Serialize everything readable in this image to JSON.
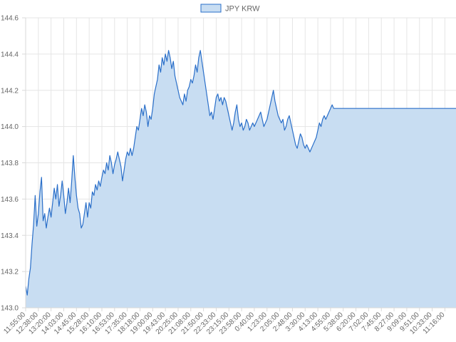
{
  "chart_data": {
    "type": "area",
    "title": "",
    "xlabel": "",
    "ylabel": "",
    "legend": {
      "position": "top-center",
      "entries": [
        "JPY KRW"
      ]
    },
    "series": [
      {
        "name": "JPY KRW",
        "color": "#2a6fc9",
        "fill": "#c8ddf2",
        "points": [
          [
            "11:55:00",
            143.12
          ],
          [
            "12:01:00",
            143.07
          ],
          [
            "12:06:00",
            143.16
          ],
          [
            "12:11:00",
            143.22
          ],
          [
            "12:17:00",
            143.35
          ],
          [
            "12:23:00",
            143.46
          ],
          [
            "12:28:00",
            143.62
          ],
          [
            "12:33:00",
            143.45
          ],
          [
            "12:38:00",
            143.52
          ],
          [
            "12:43:00",
            143.64
          ],
          [
            "12:48:00",
            143.72
          ],
          [
            "12:52:00",
            143.48
          ],
          [
            "12:58:00",
            143.52
          ],
          [
            "13:04:00",
            143.44
          ],
          [
            "13:09:00",
            143.5
          ],
          [
            "13:14:00",
            143.55
          ],
          [
            "13:20:00",
            143.5
          ],
          [
            "13:25:00",
            143.58
          ],
          [
            "13:30:00",
            143.66
          ],
          [
            "13:35:00",
            143.6
          ],
          [
            "13:41:00",
            143.68
          ],
          [
            "13:46:00",
            143.56
          ],
          [
            "13:51:00",
            143.62
          ],
          [
            "13:57:00",
            143.7
          ],
          [
            "14:03:00",
            143.62
          ],
          [
            "14:08:00",
            143.52
          ],
          [
            "14:13:00",
            143.58
          ],
          [
            "14:18:00",
            143.66
          ],
          [
            "14:23:00",
            143.58
          ],
          [
            "14:28:00",
            143.7
          ],
          [
            "14:33:00",
            143.84
          ],
          [
            "14:38:00",
            143.72
          ],
          [
            "14:45:00",
            143.62
          ],
          [
            "14:50:00",
            143.55
          ],
          [
            "14:55:00",
            143.52
          ],
          [
            "15:00:00",
            143.44
          ],
          [
            "15:05:00",
            143.46
          ],
          [
            "15:10:00",
            143.52
          ],
          [
            "15:15:00",
            143.58
          ],
          [
            "15:20:00",
            143.5
          ],
          [
            "15:28:00",
            143.58
          ],
          [
            "15:33:00",
            143.55
          ],
          [
            "15:38:00",
            143.64
          ],
          [
            "15:43:00",
            143.62
          ],
          [
            "15:48:00",
            143.68
          ],
          [
            "15:53:00",
            143.65
          ],
          [
            "15:58:00",
            143.7
          ],
          [
            "16:03:00",
            143.67
          ],
          [
            "16:10:00",
            143.72
          ],
          [
            "16:15:00",
            143.76
          ],
          [
            "16:20:00",
            143.74
          ],
          [
            "16:25:00",
            143.8
          ],
          [
            "16:30:00",
            143.76
          ],
          [
            "16:35:00",
            143.84
          ],
          [
            "16:40:00",
            143.8
          ],
          [
            "16:45:00",
            143.74
          ],
          [
            "16:53:00",
            143.79
          ],
          [
            "16:58:00",
            143.82
          ],
          [
            "17:03:00",
            143.86
          ],
          [
            "17:08:00",
            143.82
          ],
          [
            "17:13:00",
            143.78
          ],
          [
            "17:18:00",
            143.7
          ],
          [
            "17:23:00",
            143.76
          ],
          [
            "17:28:00",
            143.82
          ],
          [
            "17:35:00",
            143.86
          ],
          [
            "17:40:00",
            143.84
          ],
          [
            "17:45:00",
            143.88
          ],
          [
            "17:50:00",
            143.84
          ],
          [
            "17:55:00",
            143.88
          ],
          [
            "18:00:00",
            143.94
          ],
          [
            "18:05:00",
            144.0
          ],
          [
            "18:10:00",
            143.98
          ],
          [
            "18:18:00",
            144.04
          ],
          [
            "18:23:00",
            144.1
          ],
          [
            "18:28:00",
            144.06
          ],
          [
            "18:33:00",
            144.12
          ],
          [
            "18:38:00",
            144.08
          ],
          [
            "18:43:00",
            144.0
          ],
          [
            "18:48:00",
            144.06
          ],
          [
            "18:53:00",
            144.04
          ],
          [
            "19:00:00",
            144.1
          ],
          [
            "19:05:00",
            144.18
          ],
          [
            "19:10:00",
            144.22
          ],
          [
            "19:15:00",
            144.26
          ],
          [
            "19:20:00",
            144.34
          ],
          [
            "19:25:00",
            144.3
          ],
          [
            "19:30:00",
            144.38
          ],
          [
            "19:35:00",
            144.34
          ],
          [
            "19:43:00",
            144.4
          ],
          [
            "19:48:00",
            144.36
          ],
          [
            "19:53:00",
            144.42
          ],
          [
            "19:58:00",
            144.38
          ],
          [
            "20:03:00",
            144.32
          ],
          [
            "20:08:00",
            144.36
          ],
          [
            "20:13:00",
            144.28
          ],
          [
            "20:18:00",
            144.24
          ],
          [
            "20:25:00",
            144.2
          ],
          [
            "20:30:00",
            144.16
          ],
          [
            "20:35:00",
            144.14
          ],
          [
            "20:40:00",
            144.12
          ],
          [
            "20:45:00",
            144.18
          ],
          [
            "20:50:00",
            144.14
          ],
          [
            "20:55:00",
            144.2
          ],
          [
            "21:00:00",
            144.22
          ],
          [
            "21:08:00",
            144.26
          ],
          [
            "21:13:00",
            144.24
          ],
          [
            "21:18:00",
            144.28
          ],
          [
            "21:23:00",
            144.34
          ],
          [
            "21:28:00",
            144.3
          ],
          [
            "21:33:00",
            144.38
          ],
          [
            "21:38:00",
            144.42
          ],
          [
            "21:43:00",
            144.36
          ],
          [
            "21:50:00",
            144.3
          ],
          [
            "21:55:00",
            144.24
          ],
          [
            "22:00:00",
            144.18
          ],
          [
            "22:05:00",
            144.12
          ],
          [
            "22:10:00",
            144.06
          ],
          [
            "22:15:00",
            144.08
          ],
          [
            "22:20:00",
            144.04
          ],
          [
            "22:25:00",
            144.1
          ],
          [
            "22:33:00",
            144.16
          ],
          [
            "22:38:00",
            144.18
          ],
          [
            "22:43:00",
            144.14
          ],
          [
            "22:48:00",
            144.16
          ],
          [
            "22:53:00",
            144.12
          ],
          [
            "22:58:00",
            144.16
          ],
          [
            "23:03:00",
            144.14
          ],
          [
            "23:08:00",
            144.1
          ],
          [
            "23:15:00",
            144.06
          ],
          [
            "23:20:00",
            144.02
          ],
          [
            "23:25:00",
            143.98
          ],
          [
            "23:30:00",
            144.02
          ],
          [
            "23:35:00",
            144.08
          ],
          [
            "23:40:00",
            144.12
          ],
          [
            "23:45:00",
            144.04
          ],
          [
            "23:50:00",
            144.0
          ],
          [
            "23:58:00",
            144.02
          ],
          [
            "0:03:00",
            143.98
          ],
          [
            "0:08:00",
            144.0
          ],
          [
            "0:13:00",
            144.04
          ],
          [
            "0:18:00",
            144.02
          ],
          [
            "0:23:00",
            143.98
          ],
          [
            "0:28:00",
            144.0
          ],
          [
            "0:33:00",
            144.02
          ],
          [
            "0:40:00",
            144.0
          ],
          [
            "0:45:00",
            144.02
          ],
          [
            "0:50:00",
            144.04
          ],
          [
            "0:55:00",
            144.06
          ],
          [
            "1:00:00",
            144.08
          ],
          [
            "1:05:00",
            144.04
          ],
          [
            "1:10:00",
            144.0
          ],
          [
            "1:15:00",
            144.02
          ],
          [
            "1:23:00",
            144.04
          ],
          [
            "1:28:00",
            144.08
          ],
          [
            "1:33:00",
            144.12
          ],
          [
            "1:38:00",
            144.16
          ],
          [
            "1:43:00",
            144.2
          ],
          [
            "1:48:00",
            144.14
          ],
          [
            "1:53:00",
            144.1
          ],
          [
            "1:58:00",
            144.06
          ],
          [
            "2:05:00",
            144.04
          ],
          [
            "2:10:00",
            144.02
          ],
          [
            "2:15:00",
            144.04
          ],
          [
            "2:20:00",
            143.98
          ],
          [
            "2:25:00",
            144.0
          ],
          [
            "2:30:00",
            144.04
          ],
          [
            "2:35:00",
            144.06
          ],
          [
            "2:40:00",
            144.02
          ],
          [
            "2:48:00",
            143.98
          ],
          [
            "2:53:00",
            143.94
          ],
          [
            "2:58:00",
            143.9
          ],
          [
            "3:03:00",
            143.88
          ],
          [
            "3:08:00",
            143.92
          ],
          [
            "3:13:00",
            143.96
          ],
          [
            "3:18:00",
            143.94
          ],
          [
            "3:23:00",
            143.9
          ],
          [
            "3:30:00",
            143.88
          ],
          [
            "3:35:00",
            143.9
          ],
          [
            "3:40:00",
            143.88
          ],
          [
            "3:45:00",
            143.86
          ],
          [
            "3:50:00",
            143.88
          ],
          [
            "3:55:00",
            143.9
          ],
          [
            "4:00:00",
            143.92
          ],
          [
            "4:05:00",
            143.94
          ],
          [
            "4:13:00",
            143.98
          ],
          [
            "4:18:00",
            144.02
          ],
          [
            "4:23:00",
            144.0
          ],
          [
            "4:28:00",
            144.04
          ],
          [
            "4:33:00",
            144.06
          ],
          [
            "4:38:00",
            144.04
          ],
          [
            "4:43:00",
            144.06
          ],
          [
            "4:48:00",
            144.08
          ],
          [
            "4:55:00",
            144.1
          ],
          [
            "5:00:00",
            144.12
          ],
          [
            "5:05:00",
            144.1
          ],
          [
            "5:10:00",
            144.1
          ],
          [
            "5:15:00",
            144.1
          ],
          [
            "5:20:00",
            144.1
          ],
          [
            "5:25:00",
            144.1
          ],
          [
            "5:30:00",
            144.1
          ],
          [
            "5:38:00",
            144.1
          ],
          [
            "5:43:00",
            144.1
          ],
          [
            "5:48:00",
            144.1
          ],
          [
            "5:53:00",
            144.1
          ],
          [
            "6:00:00",
            144.1
          ],
          [
            "6:05:00",
            144.1
          ],
          [
            "6:10:00",
            144.1
          ],
          [
            "6:15:00",
            144.1
          ],
          [
            "6:20:00",
            144.1
          ],
          [
            "6:25:00",
            144.1
          ],
          [
            "6:30:00",
            144.1
          ],
          [
            "6:35:00",
            144.1
          ],
          [
            "6:40:00",
            144.1
          ],
          [
            "6:45:00",
            144.1
          ],
          [
            "6:50:00",
            144.1
          ],
          [
            "6:55:00",
            144.1
          ],
          [
            "7:02:00",
            144.1
          ],
          [
            "7:07:00",
            144.1
          ],
          [
            "7:12:00",
            144.1
          ],
          [
            "7:17:00",
            144.1
          ],
          [
            "7:22:00",
            144.1
          ],
          [
            "7:27:00",
            144.1
          ],
          [
            "7:32:00",
            144.1
          ],
          [
            "7:37:00",
            144.1
          ],
          [
            "7:45:00",
            144.1
          ],
          [
            "7:50:00",
            144.1
          ],
          [
            "7:55:00",
            144.1
          ],
          [
            "8:00:00",
            144.1
          ],
          [
            "8:05:00",
            144.1
          ],
          [
            "8:10:00",
            144.1
          ],
          [
            "8:15:00",
            144.1
          ],
          [
            "8:20:00",
            144.1
          ],
          [
            "8:27:00",
            144.1
          ],
          [
            "8:32:00",
            144.1
          ],
          [
            "8:37:00",
            144.1
          ],
          [
            "8:42:00",
            144.1
          ],
          [
            "8:47:00",
            144.1
          ],
          [
            "8:52:00",
            144.1
          ],
          [
            "8:57:00",
            144.1
          ],
          [
            "9:02:00",
            144.1
          ],
          [
            "9:09:00",
            144.1
          ],
          [
            "9:14:00",
            144.1
          ],
          [
            "9:19:00",
            144.1
          ],
          [
            "9:24:00",
            144.1
          ],
          [
            "9:29:00",
            144.1
          ],
          [
            "9:34:00",
            144.1
          ],
          [
            "9:39:00",
            144.1
          ],
          [
            "9:44:00",
            144.1
          ],
          [
            "9:51:00",
            144.1
          ],
          [
            "9:56:00",
            144.1
          ],
          [
            "10:01:00",
            144.1
          ],
          [
            "10:06:00",
            144.1
          ],
          [
            "10:11:00",
            144.1
          ],
          [
            "10:16:00",
            144.1
          ],
          [
            "10:21:00",
            144.1
          ],
          [
            "10:26:00",
            144.1
          ],
          [
            "10:33:00",
            144.1
          ],
          [
            "10:38:00",
            144.1
          ],
          [
            "10:43:00",
            144.1
          ],
          [
            "10:48:00",
            144.1
          ],
          [
            "10:53:00",
            144.1
          ],
          [
            "10:58:00",
            144.1
          ],
          [
            "11:03:00",
            144.1
          ],
          [
            "11:08:00",
            144.1
          ],
          [
            "11:16:00",
            144.1
          ],
          [
            "11:21:00",
            144.1
          ],
          [
            "11:26:00",
            144.1
          ],
          [
            "11:31:00",
            144.1
          ],
          [
            "11:36:00",
            144.1
          ],
          [
            "11:41:00",
            144.1
          ],
          [
            "11:46:00",
            144.1
          ],
          [
            "11:51:00",
            144.1
          ]
        ]
      }
    ],
    "x_tick_labels": [
      "11:55:00",
      "12:38:00",
      "13:20:00",
      "14:03:00",
      "14:45:00",
      "15:28:00",
      "16:10:00",
      "16:53:00",
      "17:35:00",
      "18:18:00",
      "19:00:00",
      "19:43:00",
      "20:25:00",
      "21:08:00",
      "21:50:00",
      "22:33:00",
      "23:15:00",
      "23:58:00",
      "0:40:00",
      "1:23:00",
      "2:05:00",
      "2:48:00",
      "3:30:00",
      "4:13:00",
      "4:55:00",
      "5:38:00",
      "6:20:00",
      "7:02:00",
      "7:45:00",
      "8:27:00",
      "9:09:00",
      "9:51:00",
      "10:33:00",
      "11:16:00"
    ],
    "y_ticks": [
      143.0,
      143.2,
      143.4,
      143.6,
      143.8,
      144.0,
      144.2,
      144.4,
      144.6
    ],
    "y_tick_labels": [
      "143.0",
      "143.2",
      "143.4",
      "143.6",
      "143.8",
      "144.0",
      "144.2",
      "144.4",
      "144.6"
    ],
    "ylim": [
      143.0,
      144.6
    ],
    "grid": true
  }
}
